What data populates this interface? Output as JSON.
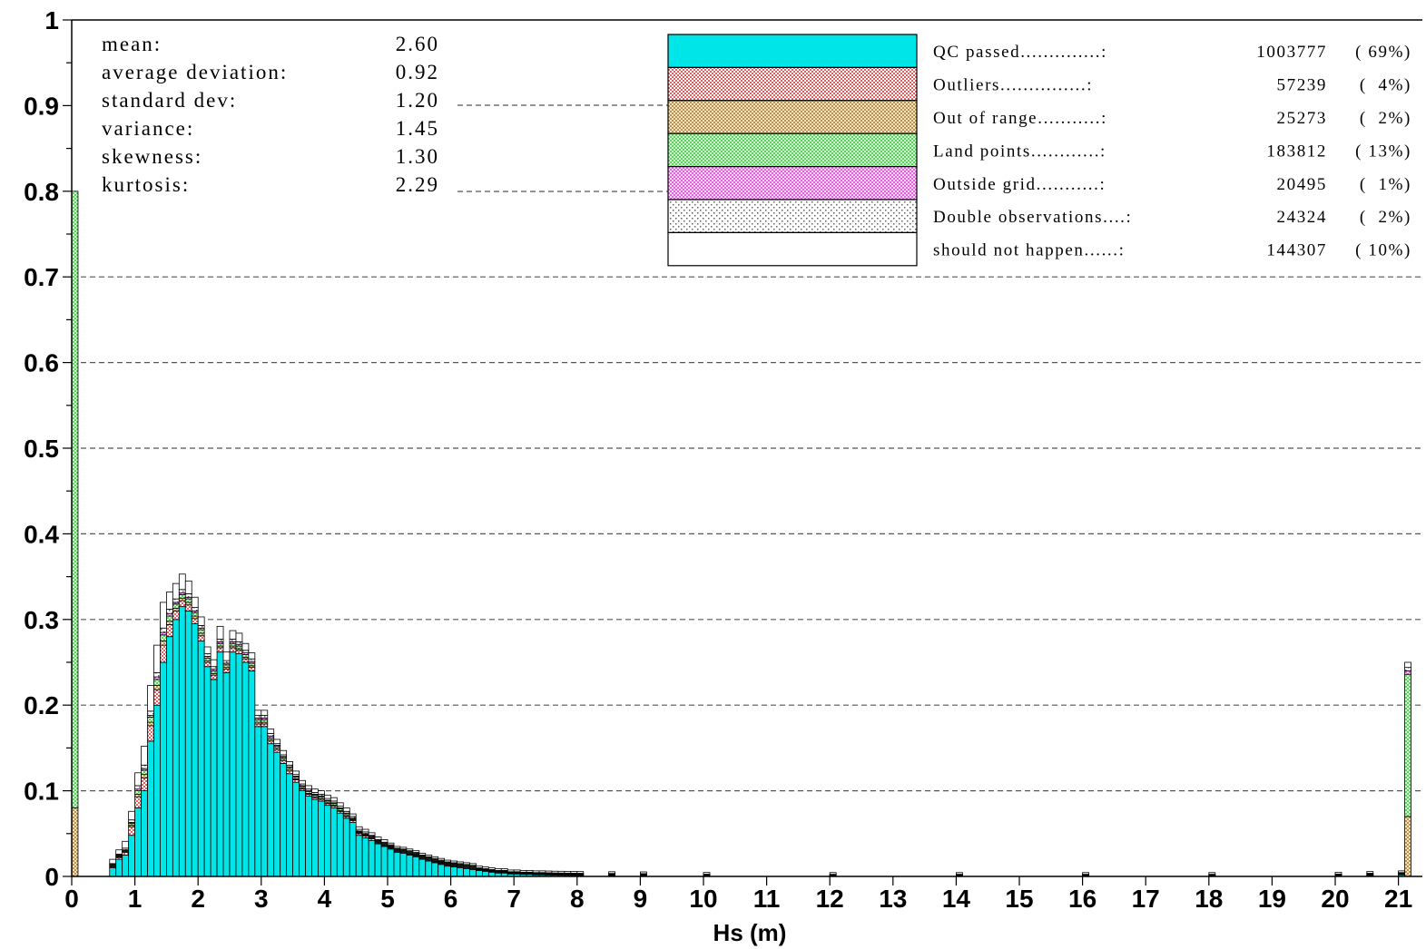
{
  "chart_data": {
    "type": "bar",
    "stacked": true,
    "title": "",
    "xlabel": "Hs (m)",
    "ylabel": "",
    "xlim": [
      0,
      21.3
    ],
    "ylim": [
      0,
      1
    ],
    "x_ticks": [
      "0",
      "1",
      "2",
      "3",
      "4",
      "5",
      "6",
      "7",
      "8",
      "9",
      "10",
      "11",
      "12",
      "13",
      "14",
      "15",
      "16",
      "17",
      "18",
      "19",
      "20",
      "21"
    ],
    "y_ticks": [
      "0",
      "0.1",
      "0.2",
      "0.3",
      "0.4",
      "0.5",
      "0.6",
      "0.7",
      "0.8",
      "0.9",
      "1"
    ],
    "grid": "dashed horizontal at 0.1 to 0.7",
    "bin_width": 0.1,
    "series_order": [
      "QC passed",
      "Outliers",
      "Out of range",
      "Land points",
      "Outside grid",
      "Double observations",
      "should not happen"
    ],
    "bins": [
      {
        "x": 0.0,
        "values": [
          0,
          0,
          0.08,
          0.72,
          0,
          0,
          0
        ]
      },
      {
        "x": 0.6,
        "values": [
          0.01,
          0.001,
          0.001,
          0.001,
          0.001,
          0.001,
          0.005
        ]
      },
      {
        "x": 0.7,
        "values": [
          0.02,
          0.002,
          0.001,
          0.001,
          0.001,
          0.001,
          0.005
        ]
      },
      {
        "x": 0.8,
        "values": [
          0.025,
          0.003,
          0.001,
          0.001,
          0.001,
          0.002,
          0.008
        ]
      },
      {
        "x": 0.9,
        "values": [
          0.048,
          0.01,
          0.002,
          0.002,
          0.001,
          0.003,
          0.01
        ]
      },
      {
        "x": 1.0,
        "values": [
          0.08,
          0.013,
          0.003,
          0.004,
          0.002,
          0.004,
          0.015
        ]
      },
      {
        "x": 1.1,
        "values": [
          0.1,
          0.015,
          0.004,
          0.005,
          0.002,
          0.004,
          0.022
        ]
      },
      {
        "x": 1.2,
        "values": [
          0.158,
          0.018,
          0.004,
          0.006,
          0.002,
          0.005,
          0.03
        ]
      },
      {
        "x": 1.3,
        "values": [
          0.2,
          0.018,
          0.005,
          0.007,
          0.003,
          0.005,
          0.032
        ]
      },
      {
        "x": 1.4,
        "values": [
          0.25,
          0.02,
          0.005,
          0.007,
          0.003,
          0.005,
          0.03
        ]
      },
      {
        "x": 1.5,
        "values": [
          0.28,
          0.014,
          0.004,
          0.006,
          0.003,
          0.005,
          0.02
        ]
      },
      {
        "x": 1.6,
        "values": [
          0.3,
          0.01,
          0.003,
          0.005,
          0.002,
          0.004,
          0.018
        ]
      },
      {
        "x": 1.7,
        "values": [
          0.315,
          0.007,
          0.003,
          0.004,
          0.002,
          0.004,
          0.018
        ]
      },
      {
        "x": 1.8,
        "values": [
          0.31,
          0.007,
          0.003,
          0.004,
          0.002,
          0.004,
          0.015
        ]
      },
      {
        "x": 1.9,
        "values": [
          0.295,
          0.006,
          0.003,
          0.004,
          0.002,
          0.004,
          0.012
        ]
      },
      {
        "x": 2.0,
        "values": [
          0.275,
          0.006,
          0.003,
          0.004,
          0.002,
          0.003,
          0.01
        ]
      },
      {
        "x": 2.1,
        "values": [
          0.245,
          0.005,
          0.002,
          0.003,
          0.002,
          0.003,
          0.008
        ]
      },
      {
        "x": 2.2,
        "values": [
          0.23,
          0.005,
          0.002,
          0.003,
          0.002,
          0.003,
          0.008
        ]
      },
      {
        "x": 2.3,
        "values": [
          0.262,
          0.005,
          0.002,
          0.003,
          0.002,
          0.003,
          0.015
        ]
      },
      {
        "x": 2.4,
        "values": [
          0.238,
          0.004,
          0.002,
          0.003,
          0.002,
          0.003,
          0.01
        ]
      },
      {
        "x": 2.5,
        "values": [
          0.262,
          0.005,
          0.002,
          0.003,
          0.002,
          0.003,
          0.01
        ]
      },
      {
        "x": 2.6,
        "values": [
          0.26,
          0.004,
          0.002,
          0.003,
          0.002,
          0.003,
          0.01
        ]
      },
      {
        "x": 2.7,
        "values": [
          0.25,
          0.004,
          0.002,
          0.003,
          0.002,
          0.003,
          0.008
        ]
      },
      {
        "x": 2.8,
        "values": [
          0.24,
          0.004,
          0.002,
          0.003,
          0.002,
          0.003,
          0.007
        ]
      },
      {
        "x": 2.9,
        "values": [
          0.175,
          0.003,
          0.002,
          0.003,
          0.002,
          0.003,
          0.006
        ]
      },
      {
        "x": 3.0,
        "values": [
          0.175,
          0.003,
          0.002,
          0.003,
          0.002,
          0.003,
          0.006
        ]
      },
      {
        "x": 3.1,
        "values": [
          0.155,
          0.003,
          0.002,
          0.002,
          0.002,
          0.003,
          0.005
        ]
      },
      {
        "x": 3.2,
        "values": [
          0.145,
          0.003,
          0.002,
          0.002,
          0.001,
          0.002,
          0.005
        ]
      },
      {
        "x": 3.3,
        "values": [
          0.132,
          0.003,
          0.002,
          0.002,
          0.001,
          0.002,
          0.005
        ]
      },
      {
        "x": 3.4,
        "values": [
          0.12,
          0.003,
          0.002,
          0.002,
          0.001,
          0.002,
          0.004
        ]
      },
      {
        "x": 3.5,
        "values": [
          0.11,
          0.003,
          0.001,
          0.002,
          0.001,
          0.002,
          0.004
        ]
      },
      {
        "x": 3.6,
        "values": [
          0.1,
          0.002,
          0.001,
          0.002,
          0.001,
          0.002,
          0.004
        ]
      },
      {
        "x": 3.7,
        "values": [
          0.094,
          0.002,
          0.001,
          0.002,
          0.001,
          0.002,
          0.004
        ]
      },
      {
        "x": 3.8,
        "values": [
          0.09,
          0.002,
          0.001,
          0.002,
          0.001,
          0.002,
          0.004
        ]
      },
      {
        "x": 3.9,
        "values": [
          0.088,
          0.002,
          0.001,
          0.002,
          0.001,
          0.002,
          0.004
        ]
      },
      {
        "x": 4.0,
        "values": [
          0.083,
          0.002,
          0.001,
          0.002,
          0.001,
          0.002,
          0.004
        ]
      },
      {
        "x": 4.1,
        "values": [
          0.08,
          0.002,
          0.001,
          0.002,
          0.001,
          0.002,
          0.004
        ]
      },
      {
        "x": 4.2,
        "values": [
          0.074,
          0.002,
          0.001,
          0.002,
          0.001,
          0.002,
          0.004
        ]
      },
      {
        "x": 4.3,
        "values": [
          0.068,
          0.002,
          0.001,
          0.002,
          0.001,
          0.002,
          0.004
        ]
      },
      {
        "x": 4.4,
        "values": [
          0.063,
          0.002,
          0.001,
          0.001,
          0.001,
          0.002,
          0.003
        ]
      },
      {
        "x": 4.5,
        "values": [
          0.048,
          0.002,
          0.001,
          0.001,
          0.001,
          0.002,
          0.003
        ]
      },
      {
        "x": 4.6,
        "values": [
          0.045,
          0.002,
          0.001,
          0.001,
          0.001,
          0.002,
          0.003
        ]
      },
      {
        "x": 4.7,
        "values": [
          0.042,
          0.002,
          0.001,
          0.001,
          0.001,
          0.001,
          0.003
        ]
      },
      {
        "x": 4.8,
        "values": [
          0.038,
          0.001,
          0.001,
          0.001,
          0.001,
          0.001,
          0.003
        ]
      },
      {
        "x": 4.9,
        "values": [
          0.035,
          0.001,
          0.001,
          0.001,
          0.001,
          0.001,
          0.003
        ]
      },
      {
        "x": 5.0,
        "values": [
          0.032,
          0.001,
          0.001,
          0.001,
          0.001,
          0.001,
          0.002
        ]
      },
      {
        "x": 5.1,
        "values": [
          0.028,
          0.001,
          0.001,
          0.001,
          0.001,
          0.001,
          0.002
        ]
      },
      {
        "x": 5.2,
        "values": [
          0.027,
          0.001,
          0.001,
          0.001,
          0.001,
          0.001,
          0.002
        ]
      },
      {
        "x": 5.3,
        "values": [
          0.025,
          0.001,
          0.001,
          0.001,
          0.001,
          0.001,
          0.002
        ]
      },
      {
        "x": 5.4,
        "values": [
          0.023,
          0.001,
          0.001,
          0.001,
          0.001,
          0.001,
          0.002
        ]
      },
      {
        "x": 5.5,
        "values": [
          0.02,
          0.001,
          0.001,
          0.001,
          0.001,
          0.001,
          0.002
        ]
      },
      {
        "x": 5.6,
        "values": [
          0.018,
          0.001,
          0.001,
          0.001,
          0.001,
          0.001,
          0.002
        ]
      },
      {
        "x": 5.7,
        "values": [
          0.016,
          0.001,
          0.001,
          0.001,
          0.001,
          0.001,
          0.002
        ]
      },
      {
        "x": 5.8,
        "values": [
          0.014,
          0.001,
          0.001,
          0.001,
          0.001,
          0.001,
          0.002
        ]
      },
      {
        "x": 5.9,
        "values": [
          0.012,
          0.001,
          0.001,
          0.001,
          0.001,
          0.001,
          0.002
        ]
      },
      {
        "x": 6.0,
        "values": [
          0.011,
          0.001,
          0.001,
          0.001,
          0.001,
          0.001,
          0.002
        ]
      },
      {
        "x": 6.1,
        "values": [
          0.01,
          0.001,
          0.001,
          0.001,
          0.001,
          0.001,
          0.002
        ]
      },
      {
        "x": 6.2,
        "values": [
          0.009,
          0.001,
          0.001,
          0.001,
          0.001,
          0.001,
          0.002
        ]
      },
      {
        "x": 6.3,
        "values": [
          0.008,
          0.001,
          0.001,
          0.001,
          0.001,
          0.001,
          0.002
        ]
      },
      {
        "x": 6.4,
        "values": [
          0.007,
          0.001,
          0.0005,
          0.0005,
          0.0005,
          0.0005,
          0.002
        ]
      },
      {
        "x": 6.5,
        "values": [
          0.006,
          0.001,
          0.0005,
          0.0005,
          0.0005,
          0.0005,
          0.002
        ]
      },
      {
        "x": 6.6,
        "values": [
          0.005,
          0.001,
          0.0005,
          0.0005,
          0.0005,
          0.0005,
          0.002
        ]
      },
      {
        "x": 6.7,
        "values": [
          0.004,
          0.001,
          0.0005,
          0.0005,
          0.0005,
          0.0005,
          0.002
        ]
      },
      {
        "x": 6.8,
        "values": [
          0.004,
          0.001,
          0.0005,
          0.0005,
          0.0005,
          0.0005,
          0.002
        ]
      },
      {
        "x": 6.9,
        "values": [
          0.003,
          0.0005,
          0.0005,
          0.0005,
          0.0005,
          0.0005,
          0.002
        ]
      },
      {
        "x": 7.0,
        "values": [
          0.003,
          0.0005,
          0.0005,
          0.0005,
          0.0005,
          0.0005,
          0.002
        ]
      },
      {
        "x": 7.1,
        "values": [
          0.0025,
          0.0005,
          0.0005,
          0.0005,
          0.0005,
          0.0005,
          0.002
        ]
      },
      {
        "x": 7.2,
        "values": [
          0.0025,
          0.0005,
          0.0005,
          0.0005,
          0.0005,
          0.0005,
          0.002
        ]
      },
      {
        "x": 7.3,
        "values": [
          0.002,
          0.0005,
          0.0005,
          0.0005,
          0.0005,
          0.0005,
          0.002
        ]
      },
      {
        "x": 7.4,
        "values": [
          0.002,
          0.0005,
          0.0005,
          0.0005,
          0.0005,
          0.0005,
          0.002
        ]
      },
      {
        "x": 7.5,
        "values": [
          0.0018,
          0.0005,
          0.0005,
          0.0005,
          0.0005,
          0.0005,
          0.002
        ]
      },
      {
        "x": 7.6,
        "values": [
          0.0016,
          0.0005,
          0.0005,
          0.0005,
          0.0005,
          0.0005,
          0.002
        ]
      },
      {
        "x": 7.7,
        "values": [
          0.0015,
          0.0005,
          0.0005,
          0.0005,
          0.0005,
          0.0005,
          0.002
        ]
      },
      {
        "x": 7.8,
        "values": [
          0.0014,
          0.0005,
          0.0005,
          0.0005,
          0.0005,
          0.0005,
          0.002
        ]
      },
      {
        "x": 7.9,
        "values": [
          0.0013,
          0.0005,
          0.0005,
          0.0005,
          0.0005,
          0.0005,
          0.002
        ]
      },
      {
        "x": 8.0,
        "values": [
          0.0012,
          0.0005,
          0.0005,
          0.0005,
          0.0005,
          0.0005,
          0.002
        ]
      },
      {
        "x": 8.5,
        "values": [
          0.001,
          0.0005,
          0.0005,
          0.0005,
          0.0005,
          0.0005,
          0.002
        ]
      },
      {
        "x": 9.0,
        "values": [
          0.0008,
          0.0005,
          0.0005,
          0.0005,
          0.0005,
          0.0005,
          0.002
        ]
      },
      {
        "x": 10.0,
        "values": [
          0.0006,
          0.0004,
          0.0004,
          0.0004,
          0.0004,
          0.0004,
          0.002
        ]
      },
      {
        "x": 12.0,
        "values": [
          0.0005,
          0.0004,
          0.0004,
          0.0004,
          0.0004,
          0.0004,
          0.002
        ]
      },
      {
        "x": 14.0,
        "values": [
          0.0005,
          0.0004,
          0.0004,
          0.0004,
          0.0004,
          0.0004,
          0.002
        ]
      },
      {
        "x": 16.0,
        "values": [
          0.0005,
          0.0004,
          0.0004,
          0.0004,
          0.0004,
          0.0004,
          0.002
        ]
      },
      {
        "x": 18.0,
        "values": [
          0.0005,
          0.0004,
          0.0004,
          0.0004,
          0.0004,
          0.0004,
          0.002
        ]
      },
      {
        "x": 20.0,
        "values": [
          0.0008,
          0.0004,
          0.0004,
          0.0004,
          0.0004,
          0.0004,
          0.002
        ]
      },
      {
        "x": 20.5,
        "values": [
          0.0012,
          0.0005,
          0.0005,
          0.0005,
          0.0005,
          0.0005,
          0.002
        ]
      },
      {
        "x": 21.0,
        "values": [
          0.002,
          0.0005,
          0.0005,
          0.0005,
          0.0005,
          0.0005,
          0.002
        ]
      },
      {
        "x": 21.1,
        "values": [
          0.0,
          0.0,
          0.07,
          0.166,
          0.004,
          0.004,
          0.006
        ]
      }
    ],
    "statistics": [
      {
        "label": "mean:",
        "value": "2.60"
      },
      {
        "label": "average deviation:",
        "value": "0.92"
      },
      {
        "label": "standard dev:",
        "value": "1.20"
      },
      {
        "label": "variance:",
        "value": "1.45"
      },
      {
        "label": "skewness:",
        "value": "1.30"
      },
      {
        "label": "kurtosis:",
        "value": "2.29"
      }
    ],
    "legend": {
      "placement": "top-right",
      "entries": [
        {
          "name": "QC passed",
          "text": "QC passed..............:",
          "count": "1003777",
          "percent": "( 69%)",
          "color": "#00f0f0",
          "pattern": "solid"
        },
        {
          "name": "Outliers",
          "text": "Outliers...............:",
          "count": "57239",
          "percent": "(  4%)",
          "color": "#f08080",
          "pattern": "dots"
        },
        {
          "name": "Out of range",
          "text": "Out of range...........:",
          "count": "25273",
          "percent": "(  2%)",
          "color": "#d2b070",
          "pattern": "dots"
        },
        {
          "name": "Land points",
          "text": "Land points............:",
          "count": "183812",
          "percent": "( 13%)",
          "color": "#90e890",
          "pattern": "dots"
        },
        {
          "name": "Outside grid",
          "text": "Outside grid...........:",
          "count": "20495",
          "percent": "(  1%)",
          "color": "#f090f0",
          "pattern": "dots"
        },
        {
          "name": "Double observations",
          "text": "Double observations....:",
          "count": "24324",
          "percent": "(  2%)",
          "color": "#a0a0a0",
          "pattern": "sparse-dots"
        },
        {
          "name": "should not happen",
          "text": "should not happen......:",
          "count": "144307",
          "percent": "( 10%)",
          "color": "#ffffff",
          "pattern": "solid"
        }
      ]
    }
  }
}
